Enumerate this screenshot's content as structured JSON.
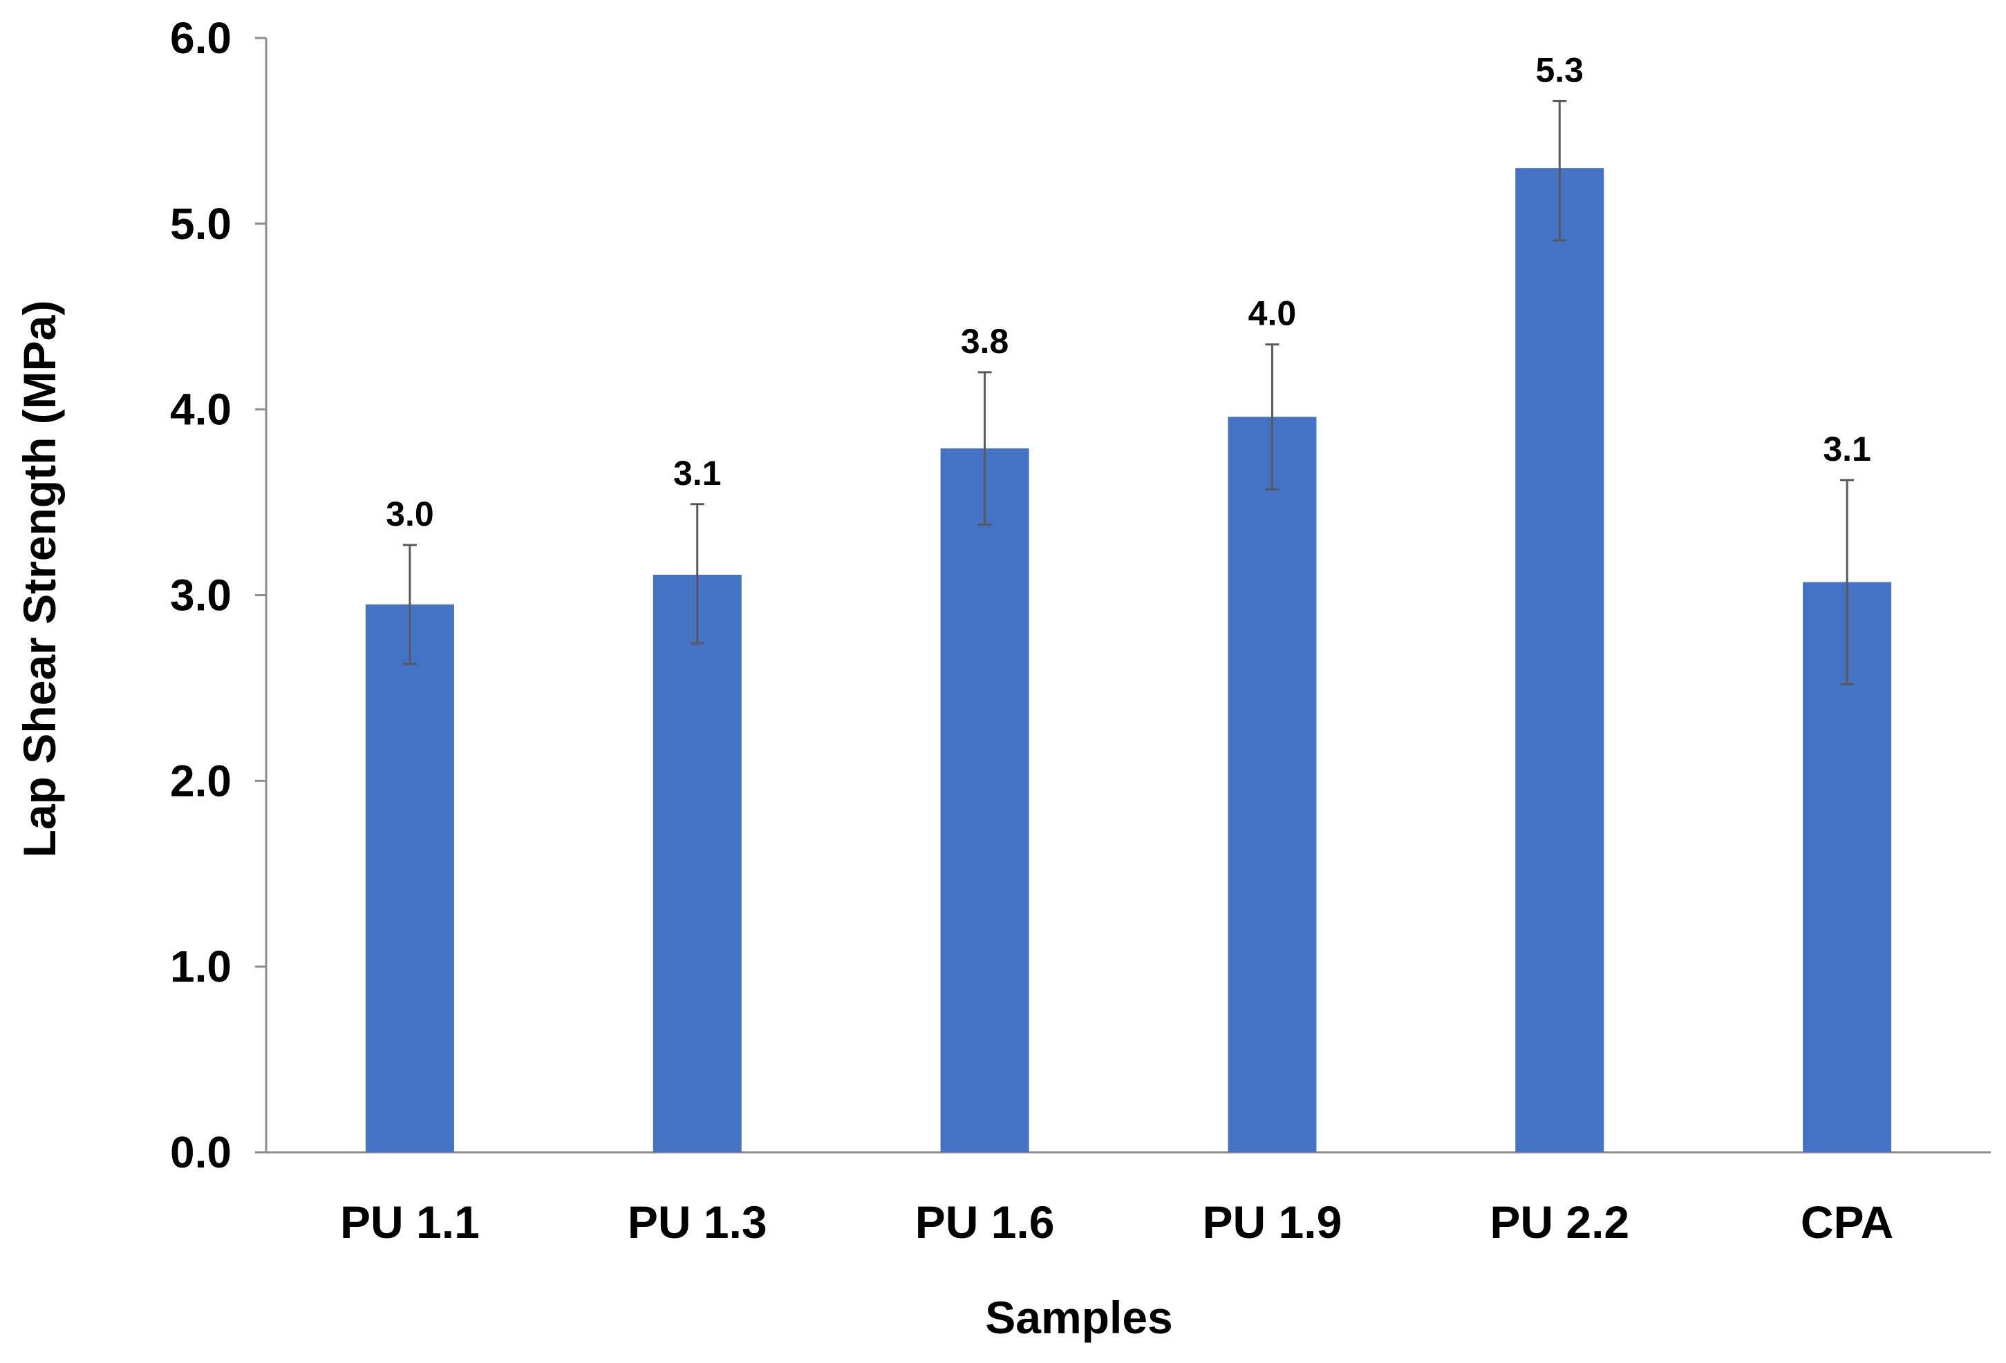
{
  "chart_data": {
    "type": "bar",
    "title": "",
    "xlabel": "Samples",
    "ylabel": "Lap Shear Strength (MPa)",
    "ylim": [
      0,
      6
    ],
    "y_ticks": [
      0,
      1,
      2,
      3,
      4,
      5,
      6
    ],
    "y_tick_labels": [
      "0.0",
      "1.0",
      "2.0",
      "3.0",
      "4.0",
      "5.0",
      "6.0"
    ],
    "grid": false,
    "legend": "none",
    "bar_color": "#4472C4",
    "errorbar_color": "#595959",
    "categories": [
      "PU 1.1",
      "PU 1.3",
      "PU 1.6",
      "PU 1.9",
      "PU 2.2",
      "CPA"
    ],
    "values": [
      2.95,
      3.11,
      3.79,
      3.96,
      5.3,
      3.07
    ],
    "error_low": [
      0.32,
      0.37,
      0.41,
      0.39,
      0.39,
      0.55
    ],
    "error_high": [
      0.32,
      0.38,
      0.41,
      0.39,
      0.36,
      0.55
    ],
    "data_labels": [
      "3.0",
      "3.1",
      "3.8",
      "4.0",
      "5.3",
      "3.1"
    ]
  }
}
